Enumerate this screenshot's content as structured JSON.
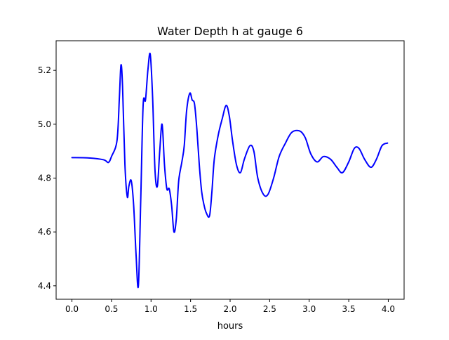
{
  "chart_data": {
    "type": "line",
    "title": "Water Depth h at gauge 6",
    "xlabel": "hours",
    "ylabel": "",
    "xlim": [
      -0.2,
      4.2
    ],
    "ylim": [
      4.35,
      5.31
    ],
    "xticks": [
      0.0,
      0.5,
      1.0,
      1.5,
      2.0,
      2.5,
      3.0,
      3.5,
      4.0
    ],
    "xtick_labels": [
      "0.0",
      "0.5",
      "1.0",
      "1.5",
      "2.0",
      "2.5",
      "3.0",
      "3.5",
      "4.0"
    ],
    "yticks": [
      4.4,
      4.6,
      4.8,
      5.0,
      5.2
    ],
    "ytick_labels": [
      "4.4",
      "4.6",
      "4.8",
      "5.0",
      "5.2"
    ],
    "grid": false,
    "legend": "none",
    "series": [
      {
        "color": "#0000ff",
        "x": [
          0.0,
          0.2,
          0.4,
          0.46,
          0.5,
          0.57,
          0.6,
          0.62,
          0.64,
          0.67,
          0.7,
          0.72,
          0.75,
          0.78,
          0.81,
          0.84,
          0.87,
          0.9,
          0.93,
          0.96,
          0.99,
          1.02,
          1.05,
          1.08,
          1.11,
          1.14,
          1.17,
          1.2,
          1.23,
          1.26,
          1.29,
          1.32,
          1.35,
          1.39,
          1.42,
          1.45,
          1.49,
          1.52,
          1.55,
          1.58,
          1.61,
          1.64,
          1.67,
          1.7,
          1.74,
          1.77,
          1.8,
          1.85,
          1.9,
          1.95,
          1.99,
          2.03,
          2.08,
          2.13,
          2.18,
          2.25,
          2.3,
          2.35,
          2.42,
          2.48,
          2.55,
          2.62,
          2.7,
          2.78,
          2.88,
          2.95,
          3.02,
          3.1,
          3.18,
          3.27,
          3.35,
          3.42,
          3.5,
          3.57,
          3.63,
          3.7,
          3.78,
          3.85,
          3.92,
          3.99
        ],
        "y": [
          4.876,
          4.875,
          4.868,
          4.858,
          4.88,
          4.94,
          5.1,
          5.22,
          5.14,
          4.85,
          4.73,
          4.77,
          4.79,
          4.7,
          4.52,
          4.4,
          4.72,
          5.07,
          5.09,
          5.2,
          5.26,
          5.1,
          4.83,
          4.77,
          4.9,
          5.0,
          4.85,
          4.76,
          4.76,
          4.7,
          4.6,
          4.65,
          4.79,
          4.86,
          4.92,
          5.05,
          5.115,
          5.09,
          5.075,
          4.98,
          4.85,
          4.75,
          4.7,
          4.67,
          4.66,
          4.75,
          4.87,
          4.96,
          5.02,
          5.07,
          5.03,
          4.94,
          4.85,
          4.82,
          4.87,
          4.92,
          4.9,
          4.8,
          4.74,
          4.74,
          4.8,
          4.88,
          4.93,
          4.97,
          4.975,
          4.95,
          4.89,
          4.86,
          4.88,
          4.87,
          4.84,
          4.82,
          4.86,
          4.91,
          4.91,
          4.87,
          4.84,
          4.87,
          4.92,
          4.93
        ]
      }
    ]
  }
}
